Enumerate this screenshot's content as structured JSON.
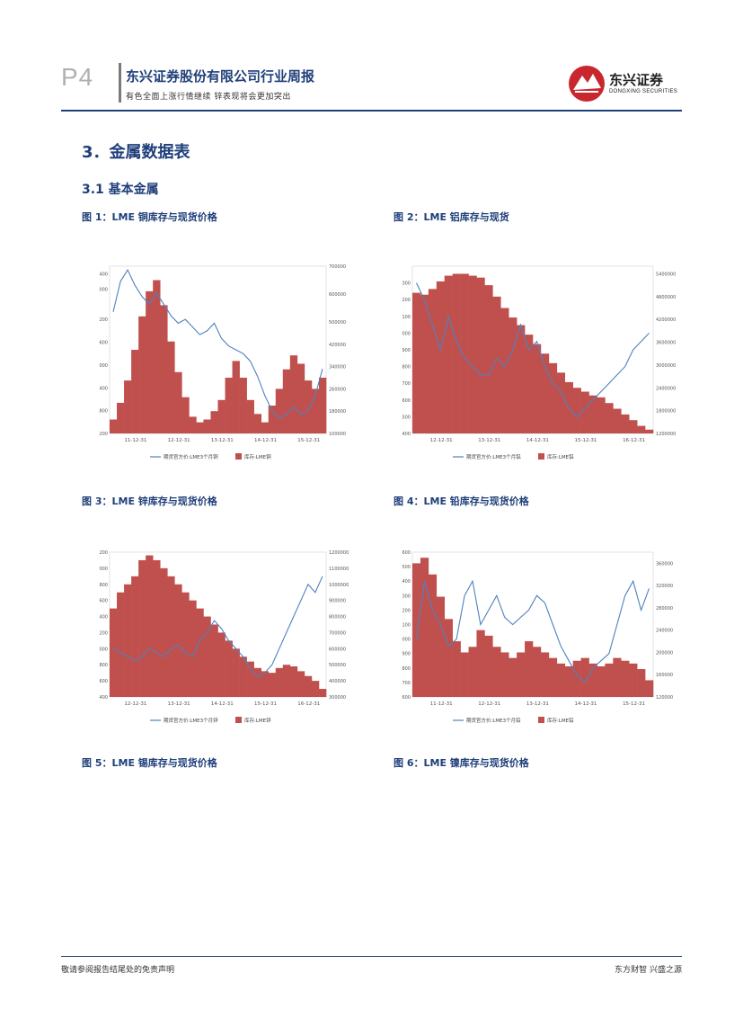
{
  "header": {
    "page_number": "P4",
    "company": "东兴证券股份有限公司行业周报",
    "subtitle": "有色全面上涨行情继续 锌表现将会更加突出",
    "logo_cn": "东兴证券",
    "logo_en": "DONGXING SECURITIES",
    "brand_color": "#1f3f7a",
    "logo_color": "#c8282d"
  },
  "section": {
    "title": "3．金属数据表",
    "subtitle": "3.1  基本金属"
  },
  "figures": [
    {
      "title": "图 1：LME 铜库存与现货价格"
    },
    {
      "title": "图 2：LME 铝库存与现货"
    },
    {
      "title": "图 3：LME 锌库存与现货价格"
    },
    {
      "title": "图 4：LME 铅库存与现货价格"
    },
    {
      "title": "图 5：LME 锡库存与现货价格"
    },
    {
      "title": "图 6：LME 镍库存与现货价格"
    }
  ],
  "chart_data": [
    {
      "type": "area+line",
      "title": "图 1：LME 铜库存与现货价格",
      "legend": [
        "期货官方价:LME3个月铜",
        "库存:LME铜"
      ],
      "x_ticks": [
        "11-12-31",
        "12-12-31",
        "13-12-31",
        "14-12-31",
        "15-12-31"
      ],
      "y_left": {
        "ticks": [
          "8400",
          "8000",
          "7200",
          "6600",
          "6000",
          "5400",
          "4800",
          "4200"
        ],
        "range": [
          4200,
          8600
        ]
      },
      "y_right": {
        "ticks": [
          "700000",
          "600000",
          "500000",
          "420000",
          "340000",
          "260000",
          "180000",
          "100000"
        ],
        "range": [
          100000,
          700000
        ]
      },
      "series": [
        {
          "name": "库存:LME铜",
          "kind": "area",
          "color": "#c0504d",
          "values": [
            150000,
            210000,
            290000,
            400000,
            520000,
            610000,
            650000,
            560000,
            430000,
            320000,
            230000,
            160000,
            140000,
            150000,
            180000,
            220000,
            300000,
            360000,
            300000,
            220000,
            170000,
            140000,
            200000,
            260000,
            330000,
            380000,
            350000,
            290000,
            260000,
            300000
          ]
        },
        {
          "name": "期货官方价:LME3个月铜",
          "kind": "line",
          "color": "#4f81bd",
          "values": [
            7400,
            8200,
            8500,
            8100,
            7800,
            7600,
            7900,
            7600,
            7300,
            7100,
            7200,
            7000,
            6800,
            6900,
            7100,
            6700,
            6500,
            6400,
            6300,
            6100,
            5700,
            5200,
            4800,
            4600,
            4700,
            4900,
            4700,
            4800,
            5200,
            5900
          ]
        }
      ]
    },
    {
      "type": "area+line",
      "title": "图 2：LME 铝库存与现货",
      "legend": [
        "期货官方价:LME3个月铝",
        "库存:LME铝"
      ],
      "x_ticks": [
        "12-12-31",
        "13-12-31",
        "14-12-31",
        "15-12-31",
        "16-12-31"
      ],
      "y_left": {
        "ticks": [
          "2300",
          "2200",
          "2100",
          "2000",
          "1900",
          "1800",
          "1700",
          "1600",
          "1500",
          "1400"
        ],
        "range": [
          1400,
          2400
        ]
      },
      "y_right": {
        "ticks": [
          "5400000",
          "4800000",
          "4200000",
          "3600000",
          "3000000",
          "2400000",
          "1800000",
          "1200000"
        ],
        "range": [
          1200000,
          5600000
        ]
      },
      "series": [
        {
          "name": "库存:LME铝",
          "kind": "area",
          "color": "#c0504d",
          "values": [
            4900000,
            4850000,
            5000000,
            5200000,
            5350000,
            5400000,
            5400000,
            5350000,
            5300000,
            5100000,
            4800000,
            4500000,
            4250000,
            4050000,
            3800000,
            3550000,
            3300000,
            3050000,
            2800000,
            2550000,
            2400000,
            2300000,
            2200000,
            2150000,
            2000000,
            1850000,
            1700000,
            1550000,
            1400000,
            1300000
          ]
        },
        {
          "name": "期货官方价:LME3个月铝",
          "kind": "line",
          "color": "#4f81bd",
          "values": [
            2300,
            2200,
            2050,
            1900,
            2100,
            1950,
            1850,
            1800,
            1750,
            1750,
            1850,
            1800,
            1900,
            2050,
            1900,
            1950,
            1800,
            1700,
            1650,
            1550,
            1500,
            1550,
            1600,
            1650,
            1700,
            1750,
            1800,
            1900,
            1950,
            2000
          ]
        }
      ]
    },
    {
      "type": "area+line",
      "title": "图 3：LME 锌库存与现货价格",
      "legend": [
        "期货官方价:LME3个月锌",
        "库存:LME锌"
      ],
      "x_ticks": [
        "12-12-31",
        "13-12-31",
        "14-12-31",
        "15-12-31",
        "16-12-31"
      ],
      "y_left": {
        "ticks": [
          "3200",
          "3000",
          "2800",
          "2600",
          "2400",
          "2200",
          "2000",
          "1800",
          "1600",
          "1400"
        ],
        "range": [
          1400,
          3200
        ]
      },
      "y_right": {
        "ticks": [
          "1200000",
          "1100000",
          "1000000",
          "900000",
          "800000",
          "700000",
          "600000",
          "500000",
          "400000",
          "300000"
        ],
        "range": [
          300000,
          1200000
        ]
      },
      "series": [
        {
          "name": "库存:LME锌",
          "kind": "area",
          "color": "#c0504d",
          "values": [
            850000,
            950000,
            1000000,
            1050000,
            1150000,
            1180000,
            1150000,
            1100000,
            1050000,
            1000000,
            950000,
            900000,
            850000,
            800000,
            750000,
            700000,
            650000,
            600000,
            550000,
            520000,
            480000,
            460000,
            450000,
            480000,
            500000,
            490000,
            460000,
            430000,
            400000,
            350000
          ]
        },
        {
          "name": "期货官方价:LME3个月锌",
          "kind": "line",
          "color": "#4f81bd",
          "values": [
            2000,
            1950,
            1900,
            1850,
            1900,
            2000,
            1950,
            1900,
            2000,
            2050,
            1950,
            1900,
            2100,
            2200,
            2350,
            2250,
            2100,
            2000,
            1900,
            1750,
            1650,
            1700,
            1800,
            2000,
            2200,
            2400,
            2600,
            2800,
            2700,
            2900
          ]
        }
      ]
    },
    {
      "type": "area+line",
      "title": "图 4：LME 铅库存与现货价格",
      "legend": [
        "期货官方价:LME3个月铅",
        "库存:LME铅"
      ],
      "x_ticks": [
        "11-12-31",
        "12-12-31",
        "13-12-31",
        "14-12-31",
        "15-12-31"
      ],
      "y_left": {
        "ticks": [
          "2600",
          "2500",
          "2400",
          "2300",
          "2200",
          "2100",
          "2000",
          "1900",
          "1800",
          "1700",
          "1600"
        ],
        "range": [
          1600,
          2600
        ]
      },
      "y_right": {
        "ticks": [
          "360000",
          "320000",
          "280000",
          "240000",
          "200000",
          "160000",
          "120000"
        ],
        "range": [
          120000,
          380000
        ]
      },
      "series": [
        {
          "name": "库存:LME铅",
          "kind": "area",
          "color": "#c0504d",
          "values": [
            360000,
            370000,
            340000,
            300000,
            260000,
            220000,
            200000,
            210000,
            240000,
            230000,
            210000,
            200000,
            190000,
            200000,
            220000,
            210000,
            200000,
            190000,
            180000,
            175000,
            185000,
            190000,
            180000,
            175000,
            180000,
            190000,
            185000,
            180000,
            170000,
            150000
          ]
        },
        {
          "name": "期货官方价:LME3个月铅",
          "kind": "line",
          "color": "#4f81bd",
          "values": [
            2000,
            2400,
            2200,
            2100,
            1950,
            2000,
            2300,
            2400,
            2100,
            2200,
            2300,
            2150,
            2100,
            2150,
            2200,
            2300,
            2250,
            2100,
            1950,
            1850,
            1750,
            1700,
            1800,
            1850,
            1900,
            2100,
            2300,
            2400,
            2200,
            2350
          ]
        }
      ]
    }
  ],
  "footer": {
    "left": "敬请参阅报告结尾处的免责声明",
    "right": "东方财智 兴盛之源"
  }
}
